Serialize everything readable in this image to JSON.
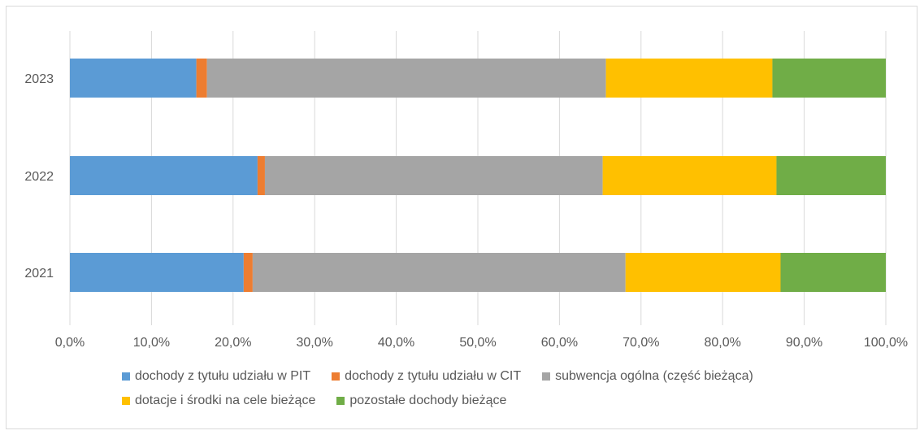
{
  "chart_data": {
    "type": "bar",
    "orientation": "horizontal",
    "stacked": "percent",
    "categories": [
      "2023",
      "2022",
      "2021"
    ],
    "series": [
      {
        "name": "dochody z tytułu udziału w PIT",
        "color": "#5b9bd5",
        "values": [
          15.5,
          23.0,
          21.3
        ]
      },
      {
        "name": "dochody z tytułu udziału w CIT",
        "color": "#ed7d31",
        "values": [
          1.3,
          0.9,
          1.1
        ]
      },
      {
        "name": "subwencja ogólna (część bieżąca)",
        "color": "#a5a5a5",
        "values": [
          48.9,
          41.4,
          45.7
        ]
      },
      {
        "name": "dotacje i środki na cele bieżące",
        "color": "#ffc000",
        "values": [
          20.4,
          21.3,
          19.0
        ]
      },
      {
        "name": "pozostałe dochody bieżące",
        "color": "#70ad47",
        "values": [
          13.9,
          13.4,
          12.9
        ]
      }
    ],
    "xlim": [
      0,
      100
    ],
    "x_ticks": [
      "0,0%",
      "10,0%",
      "20,0%",
      "30,0%",
      "40,0%",
      "50,0%",
      "60,0%",
      "70,0%",
      "80,0%",
      "90,0%",
      "100,0%"
    ],
    "grid": "vertical",
    "legend_position": "bottom"
  },
  "legend_rows": [
    [
      0,
      1,
      2
    ],
    [
      3,
      4
    ]
  ]
}
